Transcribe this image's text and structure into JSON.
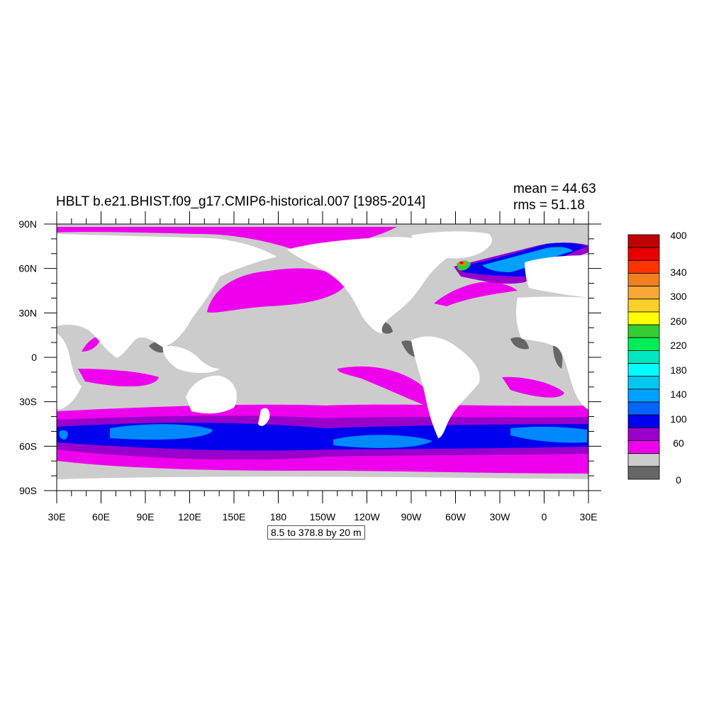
{
  "title": "HBLT b.e21.BHIST.f09_g17.CMIP6-historical.007 [1985-2014]",
  "stats": {
    "mean": "mean = 44.63",
    "rms": "rms = 51.18"
  },
  "contour_info": "8.5 to 378.8 by 20 m",
  "axes": {
    "lat_ticks": [
      "90N",
      "60N",
      "30N",
      "0",
      "30S",
      "60S",
      "90S"
    ],
    "lon_ticks": [
      "30E",
      "60E",
      "90E",
      "120E",
      "150E",
      "180",
      "150W",
      "120W",
      "90W",
      "60W",
      "30W",
      "0",
      "30E"
    ]
  },
  "colorbar": {
    "labels": [
      "400",
      "340",
      "300",
      "260",
      "220",
      "180",
      "140",
      "100",
      "60",
      "0"
    ],
    "colors": [
      "#c00000",
      "#e60000",
      "#ff3300",
      "#f08020",
      "#f8a838",
      "#fbd02a",
      "#ffff00",
      "#33cc33",
      "#00ee55",
      "#00e8c0",
      "#00ffff",
      "#00c8f0",
      "#00a0ff",
      "#0066ff",
      "#0000ee",
      "#9900cc",
      "#ee00ee",
      "#cccccc",
      "#666666"
    ]
  },
  "colors": {
    "land": "#ffffff",
    "ocean_low": "#cccccc",
    "shallow": "#666666"
  },
  "chart_data": {
    "type": "heatmap",
    "title": "HBLT b.e21.BHIST.f09_g17.CMIP6-historical.007 [1985-2014]",
    "variable": "HBLT",
    "units": "m",
    "period": "1985-2014",
    "mean": 44.63,
    "rms": 51.18,
    "contour_min": 8.5,
    "contour_max": 378.8,
    "contour_interval": 20,
    "xlim": [
      30,
      390
    ],
    "ylim": [
      -90,
      90
    ],
    "colorbar_levels": [
      0,
      20,
      40,
      60,
      80,
      100,
      120,
      140,
      160,
      180,
      200,
      220,
      240,
      260,
      280,
      300,
      320,
      340,
      360,
      380,
      400
    ]
  }
}
